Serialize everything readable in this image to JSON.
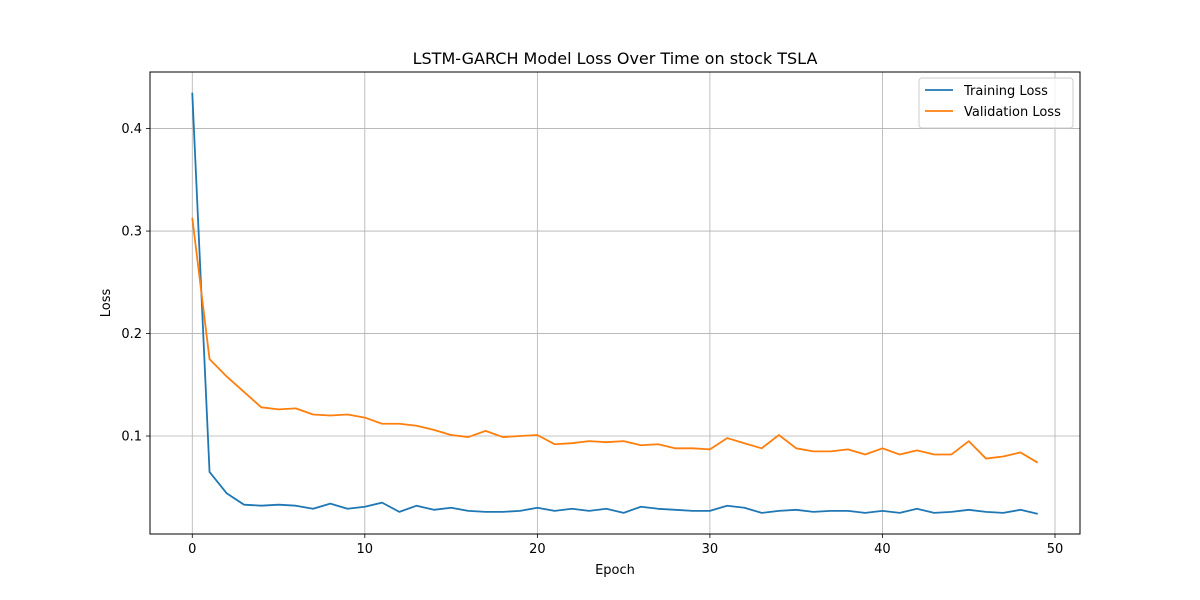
{
  "chart_data": {
    "type": "line",
    "title": "LSTM-GARCH Model Loss Over Time on stock TSLA",
    "xlabel": "Epoch",
    "ylabel": "Loss",
    "xlim": [
      -2.45,
      51.45
    ],
    "ylim": [
      0.0044,
      0.4552
    ],
    "xticks": [
      0,
      10,
      20,
      30,
      40,
      50
    ],
    "yticks": [
      0.1,
      0.2,
      0.3,
      0.4
    ],
    "xtick_labels": [
      "0",
      "10",
      "20",
      "30",
      "40",
      "50"
    ],
    "ytick_labels": [
      "0.1",
      "0.2",
      "0.3",
      "0.4"
    ],
    "grid": true,
    "legend_position": "top-right",
    "x": [
      0,
      1,
      2,
      3,
      4,
      5,
      6,
      7,
      8,
      9,
      10,
      11,
      12,
      13,
      14,
      15,
      16,
      17,
      18,
      19,
      20,
      21,
      22,
      23,
      24,
      25,
      26,
      27,
      28,
      29,
      30,
      31,
      32,
      33,
      34,
      35,
      36,
      37,
      38,
      39,
      40,
      41,
      42,
      43,
      44,
      45,
      46,
      47,
      48,
      49
    ],
    "series": [
      {
        "name": "Training Loss",
        "color": "#1f77b4",
        "values": [
          0.435,
          0.065,
          0.044,
          0.033,
          0.032,
          0.033,
          0.032,
          0.029,
          0.034,
          0.029,
          0.031,
          0.035,
          0.026,
          0.032,
          0.028,
          0.03,
          0.027,
          0.026,
          0.026,
          0.027,
          0.03,
          0.027,
          0.029,
          0.027,
          0.029,
          0.025,
          0.031,
          0.029,
          0.028,
          0.027,
          0.027,
          0.032,
          0.03,
          0.025,
          0.027,
          0.028,
          0.026,
          0.027,
          0.027,
          0.025,
          0.027,
          0.025,
          0.029,
          0.025,
          0.026,
          0.028,
          0.026,
          0.025,
          0.028,
          0.024
        ]
      },
      {
        "name": "Validation Loss",
        "color": "#ff7f0e",
        "values": [
          0.313,
          0.175,
          0.158,
          0.143,
          0.128,
          0.126,
          0.127,
          0.121,
          0.12,
          0.121,
          0.118,
          0.112,
          0.112,
          0.11,
          0.106,
          0.101,
          0.099,
          0.105,
          0.099,
          0.1,
          0.101,
          0.092,
          0.093,
          0.095,
          0.094,
          0.095,
          0.091,
          0.092,
          0.088,
          0.088,
          0.087,
          0.098,
          0.093,
          0.088,
          0.101,
          0.088,
          0.085,
          0.085,
          0.087,
          0.082,
          0.088,
          0.082,
          0.086,
          0.082,
          0.082,
          0.095,
          0.078,
          0.08,
          0.084,
          0.074
        ]
      }
    ]
  }
}
